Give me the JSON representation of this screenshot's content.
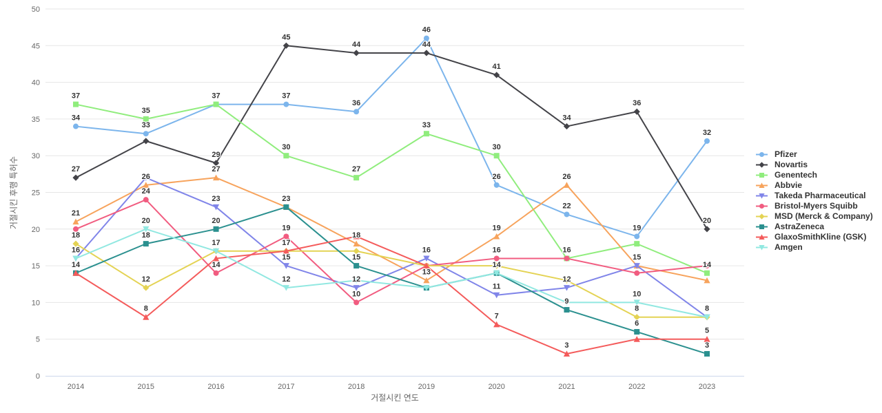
{
  "chart_data": {
    "type": "line",
    "title": "",
    "xlabel": "거절시킨 연도",
    "ylabel": "거절시킨 후행 특허수",
    "categories": [
      "2014",
      "2015",
      "2016",
      "2017",
      "2018",
      "2019",
      "2020",
      "2021",
      "2022",
      "2023"
    ],
    "ylim": [
      0,
      50
    ],
    "ytick_step": 5,
    "grid": "horizontal-only",
    "legend_position": "right-middle",
    "axis_text_color": "#666666",
    "grid_color": "#e6e6e6",
    "axis_line_color": "#ccd6eb",
    "data_label_color": "#333333",
    "series": [
      {
        "name": "Pfizer",
        "color": "#7cb5ec",
        "marker": "circle",
        "values": [
          34,
          33,
          37,
          37,
          36,
          46,
          26,
          22,
          19,
          32
        ]
      },
      {
        "name": "Novartis",
        "color": "#434348",
        "marker": "diamond",
        "values": [
          27,
          32,
          29,
          45,
          44,
          44,
          41,
          34,
          36,
          20
        ]
      },
      {
        "name": "Genentech",
        "color": "#90ed7d",
        "marker": "square",
        "values": [
          37,
          35,
          37,
          30,
          27,
          33,
          30,
          16,
          18,
          14
        ]
      },
      {
        "name": "Abbvie",
        "color": "#f7a35c",
        "marker": "triangle",
        "values": [
          21,
          26,
          27,
          23,
          18,
          13,
          19,
          26,
          15,
          13
        ]
      },
      {
        "name": "Takeda Pharmaceutical",
        "color": "#8085e9",
        "marker": "triangle-down",
        "values": [
          16,
          27,
          23,
          15,
          12,
          16,
          11,
          12,
          15,
          8
        ]
      },
      {
        "name": "Bristol-Myers Squibb",
        "color": "#f15c80",
        "marker": "circle",
        "values": [
          20,
          24,
          14,
          19,
          10,
          15,
          16,
          16,
          14,
          15
        ]
      },
      {
        "name": "MSD (Merck & Company)",
        "color": "#e4d354",
        "marker": "diamond",
        "values": [
          18,
          12,
          17,
          17,
          17,
          15,
          15,
          13,
          8,
          8
        ]
      },
      {
        "name": "AstraZeneca",
        "color": "#2b908f",
        "marker": "square",
        "values": [
          14,
          18,
          20,
          23,
          15,
          12,
          14,
          9,
          6,
          3
        ]
      },
      {
        "name": "GlaxoSmithKline (GSK)",
        "color": "#f45b5b",
        "marker": "triangle",
        "values": [
          14,
          8,
          16,
          17,
          19,
          15,
          7,
          3,
          5,
          5
        ]
      },
      {
        "name": "Amgen",
        "color": "#91e8e1",
        "marker": "triangle-down",
        "values": [
          16,
          20,
          17,
          12,
          13,
          12,
          14,
          10,
          10,
          8
        ]
      }
    ]
  }
}
